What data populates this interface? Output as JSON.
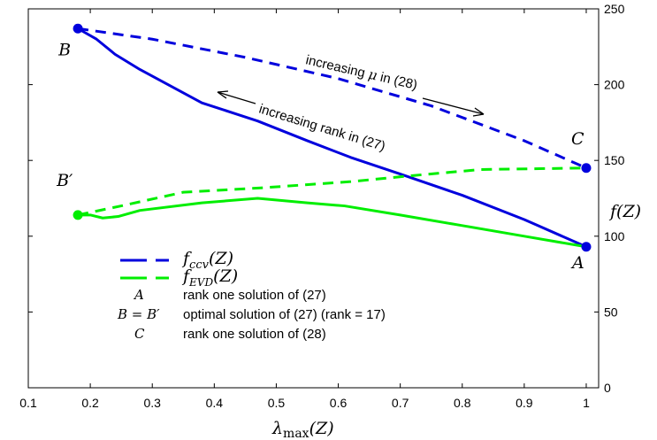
{
  "chart_data": {
    "type": "line",
    "x_label": "λmax(Z)",
    "y_label": "f(Z)",
    "x_ticks": [
      "0.1",
      "0.2",
      "0.3",
      "0.4",
      "0.5",
      "0.6",
      "0.7",
      "0.8",
      "0.9",
      "1"
    ],
    "y_ticks": [
      "0",
      "50",
      "100",
      "150",
      "200",
      "250"
    ],
    "xlim": [
      0.1,
      1.02
    ],
    "ylim": [
      0,
      250
    ],
    "y_axis_side": "right",
    "grid": false,
    "series": [
      {
        "name": "fccv(Z)",
        "dashed_segment": {
          "x": [
            0.18,
            0.3,
            0.45,
            0.6,
            0.75,
            0.9,
            1.0
          ],
          "y": [
            237,
            230,
            218,
            204,
            186,
            163,
            145
          ]
        },
        "solid_segment": {
          "x": [
            0.18,
            0.21,
            0.24,
            0.28,
            0.33,
            0.38,
            0.47,
            0.55,
            0.62,
            0.7,
            0.8,
            0.9,
            1.0
          ],
          "y": [
            237,
            230,
            220,
            210,
            199,
            188,
            176,
            163,
            152,
            141,
            127,
            111,
            93
          ]
        },
        "color": "#0000dd"
      },
      {
        "name": "fEVD(Z)",
        "dashed_segment": {
          "x": [
            0.18,
            0.25,
            0.35,
            0.48,
            0.62,
            0.72,
            0.83,
            1.0
          ],
          "y": [
            114,
            120,
            129,
            132,
            136,
            140,
            144,
            145
          ]
        },
        "solid_segment": {
          "x": [
            0.18,
            0.2,
            0.22,
            0.245,
            0.28,
            0.38,
            0.47,
            0.55,
            0.61,
            0.7,
            0.8,
            0.9,
            1.0
          ],
          "y": [
            114,
            114,
            112,
            113,
            117,
            122,
            125,
            122,
            120,
            114,
            107,
            100,
            93
          ]
        },
        "color": "#00ee00"
      }
    ],
    "points": [
      {
        "label": "B",
        "x": 0.18,
        "y": 237,
        "color": "#0000dd"
      },
      {
        "label": "C",
        "x": 1.0,
        "y": 145,
        "color": "#0000dd"
      },
      {
        "label": "B′",
        "x": 0.18,
        "y": 114,
        "color": "#00ee00"
      },
      {
        "label": "A",
        "x": 1.0,
        "y": 93,
        "color": "#0000dd"
      }
    ],
    "annotations": {
      "mu_text_pre": "increasing ",
      "mu_symbol": "μ",
      "mu_text_post": " in (28)",
      "rank_text": "increasing rank in (27)"
    },
    "legend": {
      "placement": "lower-left",
      "line_entries": [
        {
          "series": "fccv",
          "base": "f",
          "sub": "ccv",
          "arg": "(Z)"
        },
        {
          "series": "fEVD",
          "base": "f",
          "sub": "EVD",
          "arg": "(Z)"
        }
      ],
      "text_entries": [
        {
          "key": "A",
          "text": "rank one solution of (27)"
        },
        {
          "key": "B = B′",
          "text": "optimal solution of (27) (rank = 17)"
        },
        {
          "key": "C",
          "text": "rank one solution of (28)"
        }
      ]
    }
  }
}
